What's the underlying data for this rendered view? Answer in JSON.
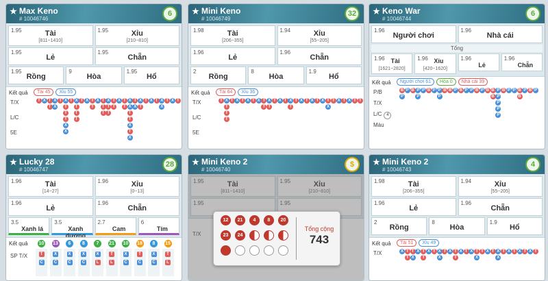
{
  "bead_colors": {
    "T": "#e35d5b",
    "X": "#4a8fdb",
    "P": "#4a8fdb",
    "B": "#e35d5b",
    "L": "#e35d5b",
    "C": "#4a8fdb"
  },
  "panels": [
    {
      "title": "Max Keno",
      "id": "# 10046746",
      "badge": "6",
      "badge_color": "#5aab3c",
      "rows": [
        {
          "cells": [
            {
              "odds": "1.95",
              "name": "Tài",
              "range": "[811~1410]"
            },
            {
              "odds": "1.95",
              "name": "Xỉu",
              "range": "[210~810]"
            }
          ]
        },
        {
          "cells": [
            {
              "odds": "1.95",
              "name": "Lẻ"
            },
            {
              "odds": "1.95",
              "name": "Chẵn"
            }
          ]
        },
        {
          "cells": [
            {
              "odds": "1.95",
              "name": "Rồng"
            },
            {
              "odds": "9",
              "name": "Hòa"
            },
            {
              "odds": "1.95",
              "name": "Hổ"
            }
          ]
        }
      ],
      "results": {
        "label": "Kết quả",
        "pills": [
          {
            "text": "Tài 45",
            "color": "#e35d5b"
          },
          {
            "text": "Xỉu 55",
            "color": "#4a8fdb"
          }
        ],
        "row_labels": [
          "T/X",
          "L/C",
          "5E"
        ],
        "beads": [
          [
            "T"
          ],
          [
            "X"
          ],
          [
            "T",
            "T"
          ],
          [
            "X",
            "X"
          ],
          [
            "T"
          ],
          [
            "X",
            "T",
            "T",
            "T",
            "X",
            "X"
          ],
          [
            "T"
          ],
          [
            "X",
            "T",
            "T",
            "T"
          ],
          [
            "T"
          ],
          [
            "X"
          ],
          [
            "T",
            "T"
          ],
          [
            "X"
          ],
          [
            "T",
            "T",
            "T"
          ],
          [
            "X",
            "T",
            "T"
          ],
          [
            "T",
            "T"
          ],
          [
            "X"
          ],
          [
            "T",
            "T"
          ],
          [
            "X",
            "X",
            "T",
            "T",
            "X",
            "T",
            "X"
          ],
          [
            "T",
            "X"
          ],
          [
            "X",
            "T"
          ],
          [
            "T"
          ],
          [
            "X"
          ],
          [
            "T"
          ],
          [
            "X",
            "X"
          ],
          [
            "T"
          ],
          [
            "X"
          ],
          [
            "T"
          ]
        ]
      }
    },
    {
      "title": "Mini Keno",
      "id": "# 10046749",
      "badge": "32",
      "badge_color": "#5aab3c",
      "rows": [
        {
          "cells": [
            {
              "odds": "1.98",
              "name": "Tài",
              "range": "[206~355]"
            },
            {
              "odds": "1.94",
              "name": "Xỉu",
              "range": "[55~205]"
            }
          ]
        },
        {
          "cells": [
            {
              "odds": "1.96",
              "name": "Lẻ"
            },
            {
              "odds": "1.96",
              "name": "Chẵn"
            }
          ]
        },
        {
          "cells": [
            {
              "odds": "2",
              "name": "Rồng"
            },
            {
              "odds": "8",
              "name": "Hòa"
            },
            {
              "odds": "1.9",
              "name": "Hổ"
            }
          ]
        }
      ],
      "results": {
        "label": "Kết quả",
        "pills": [
          {
            "text": "Tài 64",
            "color": "#e35d5b"
          },
          {
            "text": "Xỉu 36",
            "color": "#4a8fdb"
          }
        ],
        "row_labels": [
          "T/X",
          "L/C",
          "5E"
        ],
        "beads": [
          [
            "T"
          ],
          [
            "X",
            "T",
            "T",
            "T"
          ],
          [
            "T"
          ],
          [
            "X"
          ],
          [
            "T"
          ],
          [
            "X"
          ],
          [
            "T"
          ],
          [
            "X"
          ],
          [
            "T",
            "T"
          ],
          [
            "X",
            "T"
          ],
          [
            "T"
          ],
          [
            "X"
          ],
          [
            "T"
          ],
          [
            "X",
            "T"
          ],
          [
            "T"
          ],
          [
            "X"
          ],
          [
            "T"
          ],
          [
            "X"
          ],
          [
            "T"
          ],
          [
            "X"
          ],
          [
            "T",
            "X"
          ],
          [
            "T"
          ],
          [
            "X"
          ],
          [
            "T"
          ],
          [
            "X"
          ],
          [
            "T"
          ],
          [
            "T"
          ]
        ]
      }
    },
    {
      "title": "Keno War",
      "id": "# 10046744",
      "badge": "6",
      "badge_color": "#5aab3c",
      "rows": [
        {
          "cells": [
            {
              "odds": "1.96",
              "name": "Người chơi"
            },
            {
              "odds": "1.96",
              "name": "Nhà cái"
            }
          ]
        },
        {
          "label": "Tổng",
          "cells": [
            {
              "odds": "1.96",
              "name": "Tài",
              "range": "[1621~2820]"
            },
            {
              "odds": "1.96",
              "name": "Xỉu",
              "range": "[420~1620]"
            },
            {
              "odds": "1.96",
              "name": "Lẻ"
            },
            {
              "odds": "1.96",
              "name": "Chẵn"
            }
          ]
        }
      ],
      "results": {
        "label": "Kết quả",
        "pills": [
          {
            "text": "Người chơi 61",
            "color": "#4a8fdb"
          },
          {
            "text": "Hòa 0",
            "color": "#5aab3c"
          },
          {
            "text": "Nhà cái 39",
            "color": "#e35d5b"
          }
        ],
        "row_labels": [
          "P/B",
          "T/X",
          "L/C",
          "Màu"
        ],
        "row_label_badge": {
          "row": 2,
          "text": "4"
        },
        "beads": [
          [
            "B",
            "P"
          ],
          [
            "P"
          ],
          [
            "B"
          ],
          [
            "P",
            "P"
          ],
          [
            "P"
          ],
          [
            "B"
          ],
          [
            "P"
          ],
          [
            "P",
            "P"
          ],
          [
            "B"
          ],
          [
            "B"
          ],
          [
            "P"
          ],
          [
            "B"
          ],
          [
            "P"
          ],
          [
            "P"
          ],
          [
            "B"
          ],
          [
            "P"
          ],
          [
            "B"
          ],
          [
            "B",
            "B"
          ],
          [
            "P",
            "P",
            "P",
            "P",
            "P"
          ],
          [
            "B"
          ],
          [
            "P"
          ],
          [
            "P"
          ],
          [
            "B",
            "B"
          ],
          [
            "P"
          ],
          [
            "B"
          ],
          [
            "P"
          ]
        ]
      }
    },
    {
      "title": "Lucky 28",
      "id": "# 10046747",
      "badge": "28",
      "badge_color": "#5aab3c",
      "rows": [
        {
          "cells": [
            {
              "odds": "1.96",
              "name": "Tài",
              "range": "[14~27]"
            },
            {
              "odds": "1.96",
              "name": "Xỉu",
              "range": "[0~13]"
            }
          ]
        },
        {
          "cells": [
            {
              "odds": "1.96",
              "name": "Lẻ"
            },
            {
              "odds": "1.96",
              "name": "Chẵn"
            }
          ]
        },
        {
          "cells": [
            {
              "odds": "3.5",
              "name": "Xanh lá",
              "color": "#3cb043"
            },
            {
              "odds": "3.5",
              "name": "Xanh dương",
              "color": "#3498db"
            },
            {
              "odds": "2.7",
              "name": "Cam",
              "color": "#f39c12"
            },
            {
              "odds": "6",
              "name": "Tím",
              "color": "#9b59b6"
            }
          ]
        }
      ],
      "results": {
        "label": "Kết quả",
        "row_labels": [
          "SP T/X"
        ],
        "columns": [
          {
            "number": "10",
            "color": "#3cb043",
            "beads": [
              "T",
              "C"
            ]
          },
          {
            "number": "13",
            "color": "#9b59b6",
            "beads": [
              "X",
              "C"
            ]
          },
          {
            "number": "6",
            "color": "#3498db",
            "beads": [
              "X",
              "C"
            ]
          },
          {
            "number": "8",
            "color": "#3498db",
            "beads": [
              "X",
              "C"
            ]
          },
          {
            "number": "7",
            "color": "#3cb043",
            "beads": [
              "X",
              "L"
            ]
          },
          {
            "number": "21",
            "color": "#3cb043",
            "beads": [
              "T",
              "L"
            ]
          },
          {
            "number": "10",
            "color": "#3cb043",
            "beads": [
              "X",
              "C"
            ]
          },
          {
            "number": "18",
            "color": "#f39c12",
            "beads": [
              "T",
              "C"
            ]
          },
          {
            "number": "8",
            "color": "#3498db",
            "beads": [
              "X",
              "C"
            ]
          },
          {
            "number": "15",
            "color": "#f39c12",
            "beads": [
              "T",
              "L"
            ]
          }
        ]
      }
    },
    {
      "title": "Mini Keno 2",
      "id": "# 10046740",
      "badge": "$",
      "badge_color": "#e0a800",
      "disabled": true,
      "rows": [
        {
          "cells": [
            {
              "odds": "1.95",
              "name": "Tài",
              "range": "[811~1410]"
            },
            {
              "odds": "1.95",
              "name": "Xỉu",
              "range": "[210~810]"
            }
          ]
        },
        {
          "cells": [
            {
              "odds": "1.95"
            },
            {
              "odds": "1.95"
            }
          ]
        }
      ],
      "results": {
        "row_labels": [
          "T/X"
        ]
      },
      "overlay": {
        "balls": [
          "12",
          "21",
          "4",
          "8",
          "20",
          "23",
          "24"
        ],
        "total_label": "Tổng cộng",
        "total": "743"
      }
    },
    {
      "title": "Mini Keno 2",
      "id": "# 10046743",
      "badge": "4",
      "badge_color": "#5aab3c",
      "rows": [
        {
          "cells": [
            {
              "odds": "1.98",
              "name": "Tài",
              "range": "[206~355]"
            },
            {
              "odds": "1.94",
              "name": "Xỉu",
              "range": "[55~205]"
            }
          ]
        },
        {
          "cells": [
            {
              "odds": "1.96",
              "name": "Lẻ"
            },
            {
              "odds": "1.96",
              "name": "Chẵn"
            }
          ]
        },
        {
          "cells": [
            {
              "odds": "2",
              "name": "Rồng"
            },
            {
              "odds": "8",
              "name": "Hòa"
            },
            {
              "odds": "1.9",
              "name": "Hổ"
            }
          ]
        }
      ],
      "results": {
        "label": "Kết quả",
        "pills": [
          {
            "text": "Tài 51",
            "color": "#e35d5b"
          },
          {
            "text": "Xỉu 49",
            "color": "#4a8fdb"
          }
        ],
        "row_labels": [
          "T/X"
        ],
        "beads": [
          [
            "X"
          ],
          [
            "T",
            "T"
          ],
          [
            "T",
            "X"
          ],
          [
            "X"
          ],
          [
            "T",
            "T"
          ],
          [
            "X"
          ],
          [
            "T"
          ],
          [
            "X",
            "X"
          ],
          [
            "T"
          ],
          [
            "X"
          ],
          [
            "T",
            "T"
          ],
          [
            "X"
          ],
          [
            "T"
          ],
          [
            "X"
          ],
          [
            "T",
            "X"
          ],
          [
            "T"
          ],
          [
            "X"
          ],
          [
            "T"
          ],
          [
            "X",
            "X"
          ],
          [
            "T"
          ],
          [
            "X"
          ],
          [
            "T"
          ],
          [
            "X"
          ],
          [
            "T"
          ],
          [
            "X"
          ],
          [
            "T"
          ]
        ]
      }
    }
  ]
}
